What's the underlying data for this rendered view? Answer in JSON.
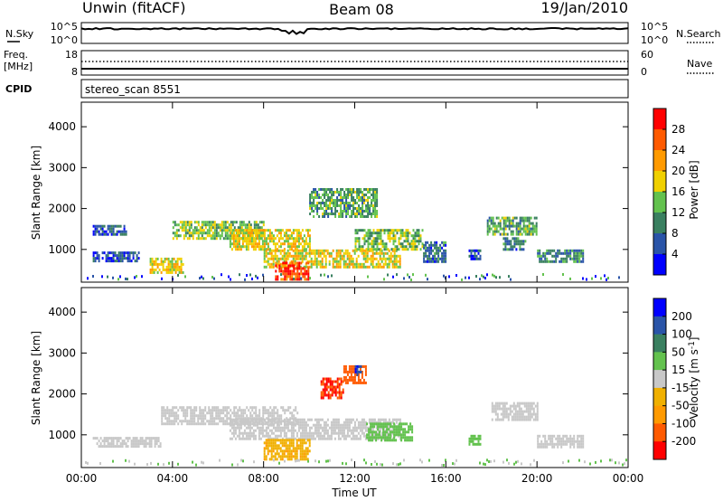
{
  "header": {
    "station": "Unwin (fitACF)",
    "beam": "Beam 08",
    "date": "19/Jan/2010"
  },
  "top_panels": {
    "nsky_label": "N.Sky",
    "nsearch_label": "N.Search",
    "noise_tick_top": "10^5",
    "noise_tick_bottom": "10^0",
    "freq_label_1": "Freq.",
    "freq_label_2": "[MHz]",
    "freq_tick_top": "18",
    "freq_tick_bottom": "8",
    "nave_label": "Nave",
    "nave_tick_top": "60",
    "nave_tick_bottom": "0",
    "cpid_label": "CPID",
    "cpid_value": "stereo_scan 8551"
  },
  "colors": {
    "power_scale": [
      "#0000ff",
      "#2a54a8",
      "#3a8060",
      "#63c24e",
      "#f0d000",
      "#ff9a00",
      "#ff5a00",
      "#ff0000"
    ],
    "velocity_scale": [
      "#ff0000",
      "#ff5a00",
      "#ff9a00",
      "#f0b000",
      "#c8c8c8",
      "#63c24e",
      "#3a8060",
      "#2a54a8",
      "#0000ff"
    ]
  },
  "chart_data": [
    {
      "type": "heatmap",
      "title": "",
      "xlabel": "",
      "ylabel": "Slant Range [km]",
      "xlim": [
        "00:00",
        "24:00"
      ],
      "ylim": [
        200,
        4600
      ],
      "yticks": [
        "1000",
        "2000",
        "3000",
        "4000"
      ],
      "colorbar": {
        "label": "Power [dB]",
        "ticks": [
          "4",
          "8",
          "12",
          "16",
          "20",
          "24",
          "28"
        ],
        "range": [
          0,
          32
        ]
      },
      "regions": [
        {
          "time_start_h": 0.5,
          "time_end_h": 2.5,
          "range_start_km": 700,
          "range_end_km": 950,
          "power_db": 6
        },
        {
          "time_start_h": 0.5,
          "time_end_h": 2.0,
          "range_start_km": 1400,
          "range_end_km": 1600,
          "power_db": 6
        },
        {
          "time_start_h": 3.0,
          "time_end_h": 4.5,
          "range_start_km": 450,
          "range_end_km": 800,
          "power_db": 18
        },
        {
          "time_start_h": 4.0,
          "time_end_h": 8.0,
          "range_start_km": 1300,
          "range_end_km": 1700,
          "power_db": 14
        },
        {
          "time_start_h": 6.5,
          "time_end_h": 10.0,
          "range_start_km": 1000,
          "range_end_km": 1500,
          "power_db": 18
        },
        {
          "time_start_h": 8.0,
          "time_end_h": 14.0,
          "range_start_km": 600,
          "range_end_km": 1000,
          "power_db": 18
        },
        {
          "time_start_h": 8.5,
          "time_end_h": 10.0,
          "range_start_km": 300,
          "range_end_km": 700,
          "power_db": 28
        },
        {
          "time_start_h": 10.0,
          "time_end_h": 13.0,
          "range_start_km": 1800,
          "range_end_km": 2500,
          "power_db": 12
        },
        {
          "time_start_h": 12.0,
          "time_end_h": 15.0,
          "range_start_km": 1000,
          "range_end_km": 1500,
          "power_db": 14
        },
        {
          "time_start_h": 15.0,
          "time_end_h": 16.0,
          "range_start_km": 700,
          "range_end_km": 1200,
          "power_db": 8
        },
        {
          "time_start_h": 17.8,
          "time_end_h": 20.0,
          "range_start_km": 1400,
          "range_end_km": 1800,
          "power_db": 12
        },
        {
          "time_start_h": 18.5,
          "time_end_h": 19.5,
          "range_start_km": 1000,
          "range_end_km": 1300,
          "power_db": 8
        },
        {
          "time_start_h": 20.0,
          "time_end_h": 22.0,
          "range_start_km": 700,
          "range_end_km": 1000,
          "power_db": 10
        },
        {
          "time_start_h": 17.0,
          "time_end_h": 17.5,
          "range_start_km": 800,
          "range_end_km": 1000,
          "power_db": 6
        }
      ]
    },
    {
      "type": "heatmap",
      "title": "",
      "xlabel": "Time UT",
      "ylabel": "Slant Range [km]",
      "xlim": [
        "00:00",
        "24:00"
      ],
      "ylim": [
        200,
        4600
      ],
      "xticks": [
        "00:00",
        "04:00",
        "08:00",
        "12:00",
        "16:00",
        "20:00",
        "00:00"
      ],
      "yticks": [
        "1000",
        "2000",
        "3000",
        "4000"
      ],
      "colorbar": {
        "label": "Velocity [m s",
        "label_sup": "-1",
        "label_end": "]",
        "ticks": [
          "200",
          "100",
          "50",
          "15",
          "-15",
          "-50",
          "-100",
          "-200"
        ],
        "range": [
          -250,
          250
        ]
      },
      "regions": [
        {
          "time_start_h": 3.5,
          "time_end_h": 9.5,
          "range_start_km": 1300,
          "range_end_km": 1700,
          "velocity": 0
        },
        {
          "time_start_h": 0.5,
          "time_end_h": 3.5,
          "range_start_km": 700,
          "range_end_km": 950,
          "velocity": 0
        },
        {
          "time_start_h": 6.5,
          "time_end_h": 14.0,
          "range_start_km": 900,
          "range_end_km": 1400,
          "velocity": 0
        },
        {
          "time_start_h": 8.0,
          "time_end_h": 10.0,
          "range_start_km": 400,
          "range_end_km": 900,
          "velocity": -40
        },
        {
          "time_start_h": 10.5,
          "time_end_h": 11.5,
          "range_start_km": 1900,
          "range_end_km": 2400,
          "velocity": -200
        },
        {
          "time_start_h": 11.5,
          "time_end_h": 12.5,
          "range_start_km": 2300,
          "range_end_km": 2700,
          "velocity": -150
        },
        {
          "time_start_h": 12.0,
          "time_end_h": 12.3,
          "range_start_km": 2500,
          "range_end_km": 2700,
          "velocity": 200
        },
        {
          "time_start_h": 12.5,
          "time_end_h": 14.5,
          "range_start_km": 900,
          "range_end_km": 1300,
          "velocity": 30
        },
        {
          "time_start_h": 17.0,
          "time_end_h": 17.5,
          "range_start_km": 800,
          "range_end_km": 1000,
          "velocity": 30
        },
        {
          "time_start_h": 18.0,
          "time_end_h": 20.0,
          "range_start_km": 1400,
          "range_end_km": 1800,
          "velocity": 0
        },
        {
          "time_start_h": 20.0,
          "time_end_h": 22.0,
          "range_start_km": 700,
          "range_end_km": 1000,
          "velocity": 0
        }
      ]
    }
  ]
}
